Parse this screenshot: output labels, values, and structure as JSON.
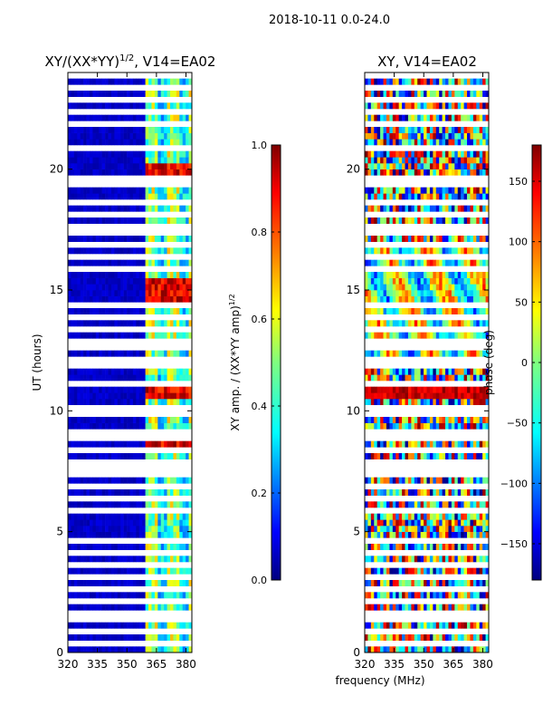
{
  "figure": {
    "suptitle": "2018-10-11 0.0-24.0",
    "xlabel": "frequency (MHz)"
  },
  "colors": {
    "jet": [
      "#00007f",
      "#0000ff",
      "#007fff",
      "#00ffff",
      "#7fff7f",
      "#ffff00",
      "#ff7f00",
      "#ff0000",
      "#7f0000"
    ]
  },
  "chart_data": [
    {
      "type": "heatmap",
      "title": "XY/(XX*YY)",
      "title_sup": "1/2",
      "title_suffix": ", V14=EA02",
      "ylabel": "UT (hours)",
      "xlim": [
        320,
        383
      ],
      "ylim": [
        0,
        24
      ],
      "x_ticks": [
        320,
        335,
        350,
        365,
        380
      ],
      "y_ticks": [
        0,
        5,
        10,
        15,
        20
      ],
      "value_range": [
        0.0,
        1.0
      ],
      "colorbar": {
        "label": "XY amp. / (XX*YY amp)",
        "label_sup": "1/2",
        "ticks": [
          "0.0",
          "0.2",
          "0.4",
          "0.6",
          "0.8",
          "1.0"
        ],
        "tick_values": [
          0.0,
          0.2,
          0.4,
          0.6,
          0.8,
          1.0
        ]
      },
      "description": "low amplitude (~0.05) across 320-359 MHz; elevated 0.3-0.9 between ~360-380 MHz; highest near 10.5-11 h, 15 h and 20 h; white gaps = flagged times"
    },
    {
      "type": "heatmap",
      "title": "XY, V14=EA02",
      "ylabel": "",
      "xlim": [
        320,
        383
      ],
      "ylim": [
        0,
        24
      ],
      "x_ticks": [
        320,
        335,
        350,
        365,
        380
      ],
      "y_ticks": [
        0,
        5,
        10,
        15,
        20
      ],
      "value_range": [
        -180,
        180
      ],
      "colorbar": {
        "label": "phase (deg)",
        "ticks": [
          "−150",
          "−100",
          "−50",
          "0",
          "50",
          "100",
          "150"
        ],
        "tick_values": [
          -150,
          -100,
          -50,
          0,
          50,
          100,
          150
        ]
      },
      "description": "phase in degrees, noisy across full band, coherent bands near 10.5-11 h"
    }
  ],
  "flagged_hours": [
    0.3,
    0.35,
    0.9,
    1.3,
    1.6,
    2.2,
    2.7,
    3.2,
    3.6,
    4.1,
    4.6,
    5.8,
    6.3,
    6.9,
    7.4,
    7.7,
    7.9,
    8.3,
    8.9,
    9.1,
    9.5,
    9.8,
    10.2,
    11.2,
    11.5,
    11.8,
    12.1,
    12.6,
    12.9,
    13.3,
    13.9,
    14.3,
    15.8,
    16.4,
    16.9,
    17.3,
    17.7,
    18.2,
    18.6,
    19.0,
    19.35,
    19.55,
    20.8,
    21.0,
    21.5,
    21.9,
    22.4,
    22.8,
    23.3,
    23.8
  ]
}
